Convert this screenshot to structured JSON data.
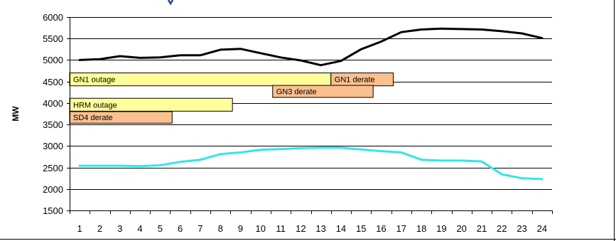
{
  "chart_data": {
    "type": "line",
    "title": "",
    "xlabel": "",
    "ylabel": "MW",
    "x": [
      1,
      2,
      3,
      4,
      5,
      6,
      7,
      8,
      9,
      10,
      11,
      12,
      13,
      14,
      15,
      16,
      17,
      18,
      19,
      20,
      21,
      22,
      23,
      24
    ],
    "ylim": [
      1500,
      6000
    ],
    "yticks": [
      1500,
      2000,
      2500,
      3000,
      3500,
      4000,
      4500,
      5000,
      5500,
      6000
    ],
    "grid": true,
    "legend": "none",
    "series": [
      {
        "color": "#000000",
        "values": [
          5000,
          5020,
          5090,
          5050,
          5060,
          5110,
          5110,
          5240,
          5260,
          5160,
          5060,
          4990,
          4880,
          4980,
          5250,
          5430,
          5650,
          5710,
          5730,
          5720,
          5710,
          5670,
          5620,
          5510
        ]
      },
      {
        "color": "#33e6e6",
        "values": [
          2540,
          2540,
          2540,
          2530,
          2550,
          2630,
          2680,
          2810,
          2850,
          2910,
          2930,
          2950,
          2960,
          2960,
          2920,
          2880,
          2850,
          2680,
          2660,
          2660,
          2640,
          2340,
          2250,
          2230
        ]
      }
    ],
    "annotations": [
      {
        "label": "GN1 outage",
        "x_start": 0.5,
        "x_end": 13.5,
        "y_top": 4700,
        "y_bottom": 4400,
        "fill": "#ffff99"
      },
      {
        "label": "GN1 derate",
        "x_start": 13.5,
        "x_end": 16.6,
        "y_top": 4700,
        "y_bottom": 4400,
        "fill": "#fac090"
      },
      {
        "label": "GN3 derate",
        "x_start": 10.6,
        "x_end": 15.6,
        "y_top": 4410,
        "y_bottom": 4130,
        "fill": "#fac090"
      },
      {
        "label": "HRM outage",
        "x_start": 0.5,
        "x_end": 8.6,
        "y_top": 4110,
        "y_bottom": 3810,
        "fill": "#ffff99"
      },
      {
        "label": "SD4 derate",
        "x_start": 0.5,
        "x_end": 5.6,
        "y_top": 3800,
        "y_bottom": 3530,
        "fill": "#fac090"
      }
    ]
  }
}
